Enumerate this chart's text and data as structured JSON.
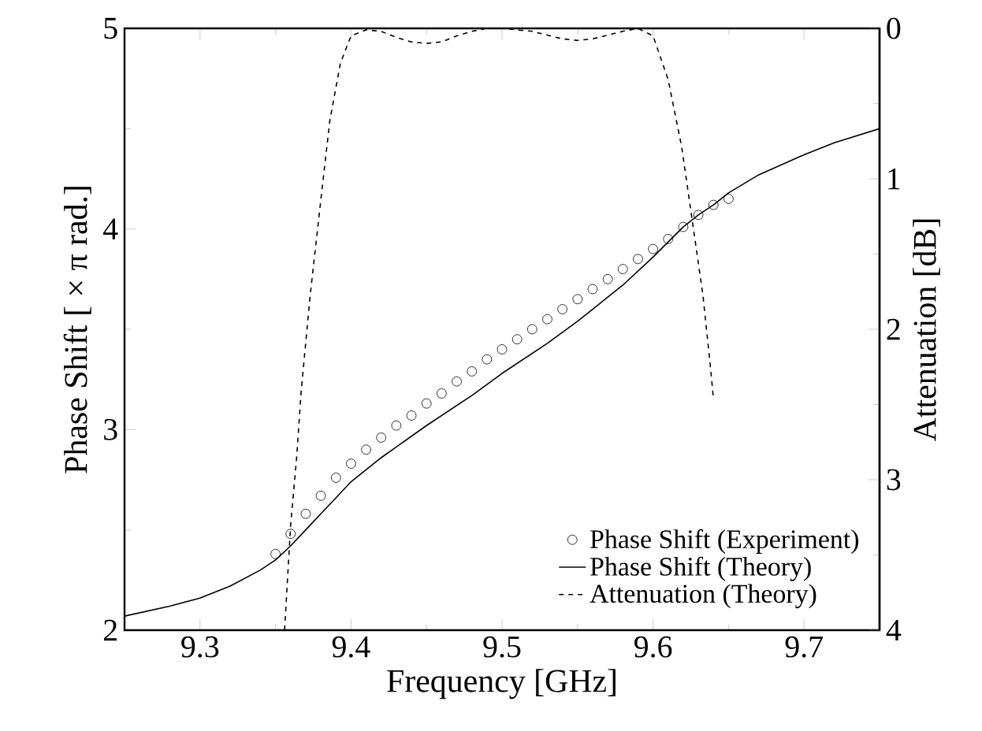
{
  "chart_data": {
    "type": "line",
    "xlabel": "Frequency [GHz]",
    "ylabel": "Phase Shift [ × π rad.]",
    "y2label": "Attenuation [dB]",
    "xlim": [
      9.25,
      9.75
    ],
    "xticks": [
      9.3,
      9.4,
      9.5,
      9.6,
      9.7
    ],
    "ylim": [
      2,
      5
    ],
    "yticks": [
      2,
      3,
      4,
      5
    ],
    "y2lim": [
      4,
      0
    ],
    "y2ticks": [
      0,
      1,
      2,
      3,
      4
    ],
    "legend": "bottom right",
    "grid": false,
    "series": [
      {
        "name": "Phase Shift (Experiment)",
        "type": "scatter",
        "marker": "circle",
        "color": "#000000",
        "x": [
          9.35,
          9.36,
          9.37,
          9.38,
          9.39,
          9.4,
          9.41,
          9.42,
          9.43,
          9.44,
          9.45,
          9.46,
          9.47,
          9.48,
          9.49,
          9.5,
          9.51,
          9.52,
          9.53,
          9.54,
          9.55,
          9.56,
          9.57,
          9.58,
          9.59,
          9.6,
          9.61,
          9.62,
          9.63,
          9.64,
          9.65
        ],
        "values": [
          2.38,
          2.48,
          2.58,
          2.67,
          2.76,
          2.83,
          2.9,
          2.96,
          3.02,
          3.07,
          3.13,
          3.18,
          3.24,
          3.29,
          3.35,
          3.4,
          3.45,
          3.5,
          3.55,
          3.6,
          3.65,
          3.7,
          3.75,
          3.8,
          3.85,
          3.9,
          3.95,
          4.01,
          4.07,
          4.12,
          4.15
        ]
      },
      {
        "name": "Phase Shift (Theory)",
        "line_style": "solid",
        "color": "#000000",
        "x": [
          9.25,
          9.28,
          9.3,
          9.32,
          9.34,
          9.35,
          9.36,
          9.37,
          9.38,
          9.39,
          9.4,
          9.42,
          9.45,
          9.48,
          9.5,
          9.53,
          9.55,
          9.58,
          9.6,
          9.62,
          9.63,
          9.64,
          9.65,
          9.67,
          9.7,
          9.72,
          9.75
        ],
        "values": [
          2.07,
          2.12,
          2.16,
          2.22,
          2.3,
          2.35,
          2.42,
          2.5,
          2.58,
          2.66,
          2.74,
          2.86,
          3.02,
          3.17,
          3.28,
          3.43,
          3.54,
          3.72,
          3.86,
          4.01,
          4.07,
          4.12,
          4.18,
          4.27,
          4.37,
          4.43,
          4.5
        ]
      },
      {
        "name": "Attenuation (Theory)",
        "line_style": "dashed",
        "axis": "y2",
        "color": "#000000",
        "x": [
          9.356,
          9.36,
          9.364,
          9.367,
          9.373,
          9.38,
          9.386,
          9.393,
          9.4,
          9.41,
          9.42,
          9.43,
          9.44,
          9.45,
          9.46,
          9.47,
          9.48,
          9.49,
          9.5,
          9.52,
          9.54,
          9.55,
          9.56,
          9.58,
          9.59,
          9.6,
          9.61,
          9.619,
          9.626,
          9.633,
          9.638,
          9.64
        ],
        "values": [
          4.0,
          3.3,
          2.85,
          2.41,
          1.77,
          1.14,
          0.61,
          0.23,
          0.05,
          0.01,
          0.02,
          0.06,
          0.09,
          0.1,
          0.09,
          0.05,
          0.02,
          0.0,
          0.0,
          0.02,
          0.07,
          0.08,
          0.07,
          0.02,
          0.0,
          0.05,
          0.34,
          0.79,
          1.28,
          1.77,
          2.25,
          2.46
        ]
      }
    ]
  }
}
